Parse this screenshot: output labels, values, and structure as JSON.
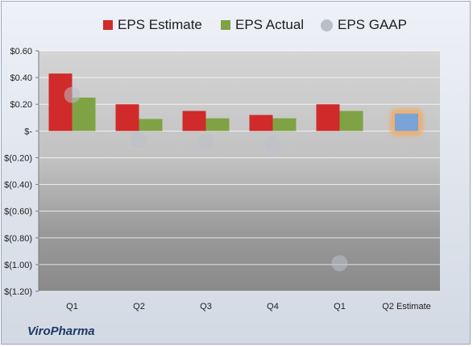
{
  "legend": {
    "estimate": "EPS Estimate",
    "actual": "EPS Actual",
    "gaap": "EPS GAAP"
  },
  "brand": "ViroPharma",
  "colors": {
    "estimate": "#d02a2a",
    "actual": "#7fa344",
    "gaap": "#b9bfc9",
    "next_estimate": "#7aa3d8",
    "highlight": "#f5a85a"
  },
  "chart_data": {
    "type": "bar",
    "categories": [
      "Q1",
      "Q2",
      "Q3",
      "Q4",
      "Q1",
      "Q2 Estimate"
    ],
    "ytick_labels": [
      "$0.60",
      "$0.40",
      "$0.20",
      "$-",
      "$(0.20)",
      "$(0.40)",
      "$(0.60)",
      "$(0.80)",
      "$(1.00)",
      "$(1.20)"
    ],
    "ylim": [
      -1.2,
      0.6
    ],
    "grid": true,
    "legend_position": "top",
    "series": [
      {
        "name": "EPS Estimate",
        "type": "bar",
        "values": [
          0.43,
          0.2,
          0.15,
          0.12,
          0.2,
          null
        ]
      },
      {
        "name": "EPS Actual",
        "type": "bar",
        "values": [
          0.25,
          0.09,
          0.095,
          0.095,
          0.15,
          0.13
        ]
      },
      {
        "name": "EPS GAAP",
        "type": "scatter",
        "values": [
          0.27,
          -0.07,
          -0.08,
          -0.1,
          -0.99,
          null
        ]
      }
    ]
  }
}
